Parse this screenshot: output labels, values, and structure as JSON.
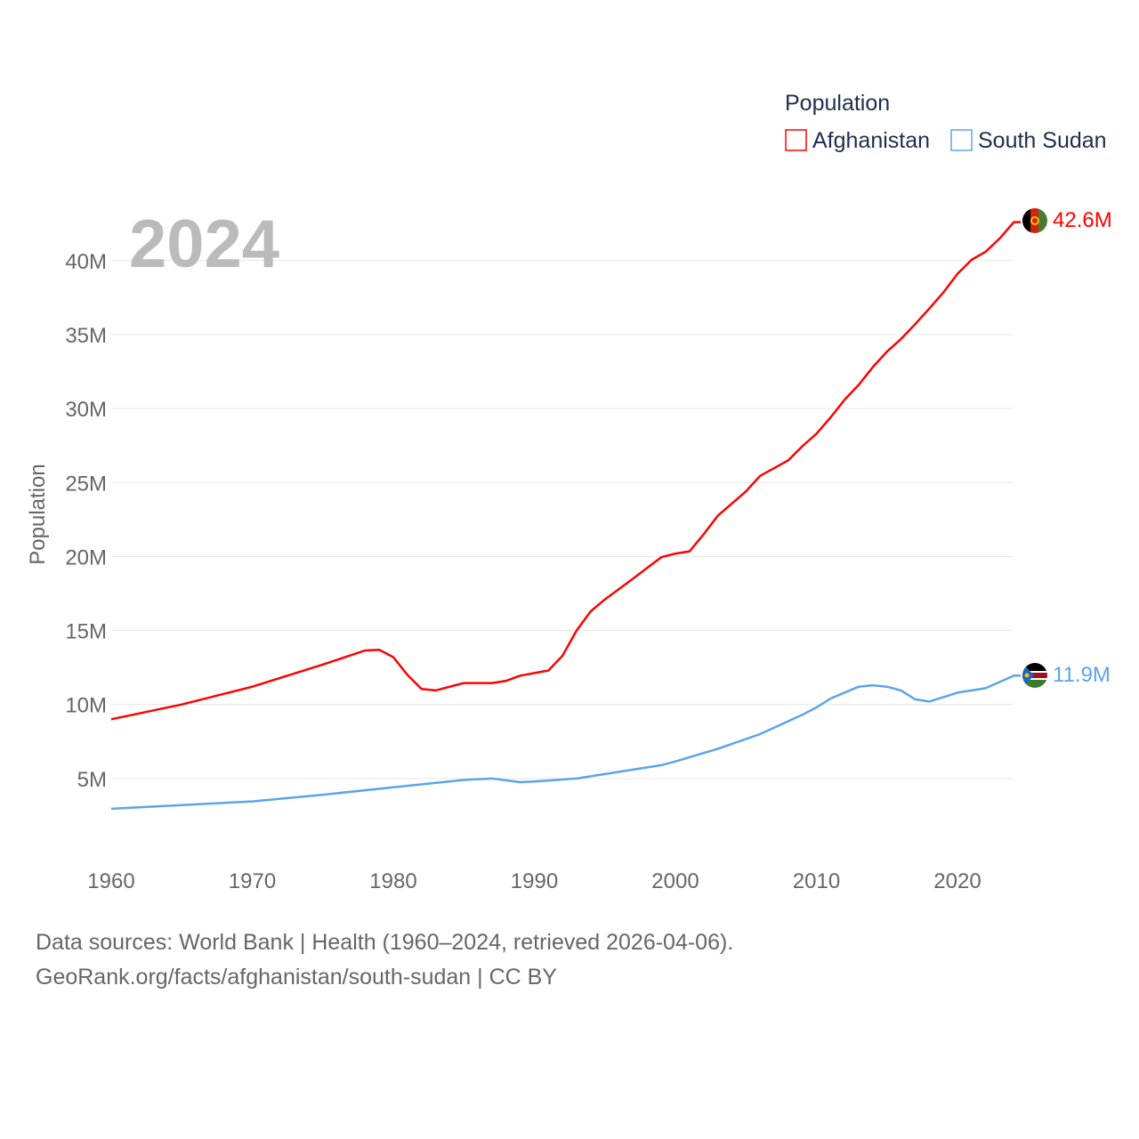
{
  "chart_data": {
    "type": "line",
    "title": "Population",
    "year_label": "2024",
    "xlabel": "",
    "ylabel": "Population",
    "xlim": [
      1960,
      2024
    ],
    "ylim": [
      0,
      43000000
    ],
    "x_ticks": [
      "1960",
      "1970",
      "1980",
      "1990",
      "2000",
      "2010",
      "2020"
    ],
    "y_ticks": [
      {
        "v": 5000000,
        "label": "5M"
      },
      {
        "v": 10000000,
        "label": "10M"
      },
      {
        "v": 15000000,
        "label": "15M"
      },
      {
        "v": 20000000,
        "label": "20M"
      },
      {
        "v": 25000000,
        "label": "25M"
      },
      {
        "v": 30000000,
        "label": "30M"
      },
      {
        "v": 35000000,
        "label": "35M"
      },
      {
        "v": 40000000,
        "label": "40M"
      }
    ],
    "grid": true,
    "legend_position": "top-right",
    "series": [
      {
        "name": "Afghanistan",
        "color": "#ff0000",
        "end_label": "42.6M",
        "flag": "afghanistan-flag",
        "points": [
          [
            1960,
            9.0
          ],
          [
            1965,
            10.0
          ],
          [
            1970,
            11.2
          ],
          [
            1975,
            12.7
          ],
          [
            1978,
            13.65
          ],
          [
            1979,
            13.7
          ],
          [
            1980,
            13.2
          ],
          [
            1981,
            12.0
          ],
          [
            1982,
            11.05
          ],
          [
            1983,
            10.95
          ],
          [
            1985,
            11.45
          ],
          [
            1987,
            11.45
          ],
          [
            1988,
            11.6
          ],
          [
            1989,
            11.95
          ],
          [
            1991,
            12.3
          ],
          [
            1992,
            13.3
          ],
          [
            1993,
            15.0
          ],
          [
            1994,
            16.3
          ],
          [
            1995,
            17.1
          ],
          [
            1997,
            18.5
          ],
          [
            1999,
            19.95
          ],
          [
            2000,
            20.2
          ],
          [
            2001,
            20.35
          ],
          [
            2002,
            21.5
          ],
          [
            2003,
            22.75
          ],
          [
            2005,
            24.4
          ],
          [
            2006,
            25.45
          ],
          [
            2008,
            26.5
          ],
          [
            2009,
            27.45
          ],
          [
            2010,
            28.3
          ],
          [
            2011,
            29.4
          ],
          [
            2012,
            30.6
          ],
          [
            2013,
            31.6
          ],
          [
            2014,
            32.8
          ],
          [
            2015,
            33.85
          ],
          [
            2016,
            34.7
          ],
          [
            2017,
            35.7
          ],
          [
            2018,
            36.75
          ],
          [
            2019,
            37.85
          ],
          [
            2020,
            39.1
          ],
          [
            2021,
            40.05
          ],
          [
            2022,
            40.6
          ],
          [
            2023,
            41.5
          ],
          [
            2024,
            42.6
          ]
        ]
      },
      {
        "name": "South Sudan",
        "color": "#5ba4ea",
        "end_label": "11.9M",
        "flag": "south-sudan-flag",
        "points": [
          [
            1960,
            2.95
          ],
          [
            1965,
            3.2
          ],
          [
            1970,
            3.45
          ],
          [
            1975,
            3.9
          ],
          [
            1980,
            4.4
          ],
          [
            1985,
            4.9
          ],
          [
            1987,
            5.0
          ],
          [
            1989,
            4.75
          ],
          [
            1990,
            4.8
          ],
          [
            1993,
            5.0
          ],
          [
            1995,
            5.3
          ],
          [
            1997,
            5.6
          ],
          [
            1999,
            5.9
          ],
          [
            2000,
            6.15
          ],
          [
            2003,
            7.0
          ],
          [
            2006,
            8.0
          ],
          [
            2009,
            9.3
          ],
          [
            2010,
            9.8
          ],
          [
            2011,
            10.4
          ],
          [
            2013,
            11.2
          ],
          [
            2014,
            11.3
          ],
          [
            2015,
            11.2
          ],
          [
            2016,
            10.95
          ],
          [
            2017,
            10.35
          ],
          [
            2018,
            10.2
          ],
          [
            2019,
            10.5
          ],
          [
            2020,
            10.8
          ],
          [
            2022,
            11.1
          ],
          [
            2024,
            11.95
          ]
        ]
      }
    ]
  },
  "source": {
    "line1": "Data sources: World Bank | Health (1960–2024, retrieved 2026-04-06).",
    "line2": "GeoRank.org/facts/afghanistan/south-sudan | CC BY"
  }
}
